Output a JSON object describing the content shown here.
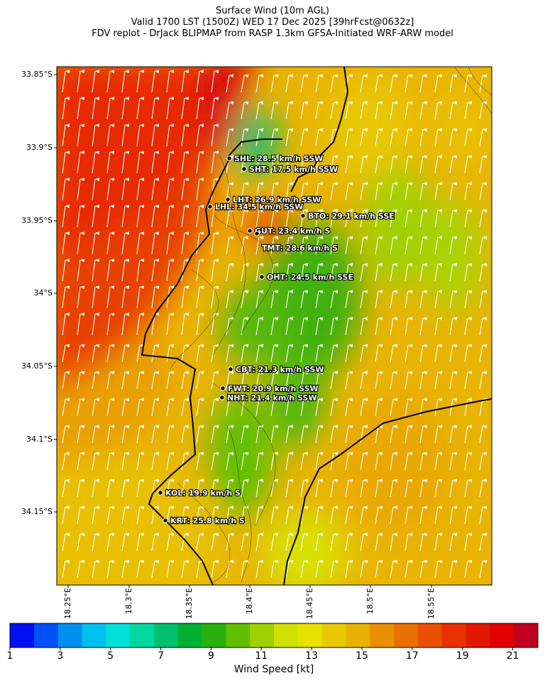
{
  "header": {
    "line1": "Surface Wind (10m AGL)",
    "line2": "Valid 1700 LST (1500Z) WED 17 Dec 2025 [39hrFcst@0632z]",
    "line3": "FDV replot - DrJack BLIPMAP from RASP 1.3km GFSA-Initiated WRF-ARW model"
  },
  "map": {
    "lat_ticks": [
      "33.85°S",
      "33.9°S",
      "33.95°S",
      "34°S",
      "34.05°S",
      "34.1°S",
      "34.15°S"
    ],
    "lon_ticks": [
      "18.25°E",
      "18.3°E",
      "18.35°E",
      "18.4°E",
      "18.45°E",
      "18.5°E",
      "18.55°E"
    ],
    "stations": [
      {
        "code": "SHL",
        "label": "SHL: 28.5 km/h SSW"
      },
      {
        "code": "SHT",
        "label": "SHT: 17.5 km/h SSW"
      },
      {
        "code": "LHT",
        "label": "LHT: 26.9 km/h SSW"
      },
      {
        "code": "LHL",
        "label": "LHL: 34.5 km/h SSW"
      },
      {
        "code": "BTO",
        "label": "BTO: 29.1 km/h SSE"
      },
      {
        "code": "GUT",
        "label": "GUT: 23.4 km/h S"
      },
      {
        "code": "TMT",
        "label": "TMT: 28.6 km/h S"
      },
      {
        "code": "OHT",
        "label": "OHT: 24.5 km/h SSE"
      },
      {
        "code": "CBT",
        "label": "CBT: 21.3 km/h SSW"
      },
      {
        "code": "FWT",
        "label": "FWT: 20.9 km/h SSW"
      },
      {
        "code": "NHT",
        "label": "NHT: 21.4 km/h SSW"
      },
      {
        "code": "KOL",
        "label": "KOL: 19.9 km/h S"
      },
      {
        "code": "KRT",
        "label": "KRT: 25.8 km/h S"
      }
    ],
    "wind_direction": "SSW",
    "arrow_color": "#ffffff"
  },
  "colorbar": {
    "label": "Wind Speed [kt]",
    "min": 1,
    "max": 22,
    "tick_labels": [
      "1",
      "3",
      "5",
      "7",
      "9",
      "11",
      "13",
      "15",
      "17",
      "19",
      "21"
    ],
    "colors": [
      "#0010f0",
      "#0050f8",
      "#0090f0",
      "#00c0ee",
      "#00e0d8",
      "#00d8a0",
      "#00c070",
      "#00b030",
      "#28b010",
      "#60c000",
      "#a0d000",
      "#d0e000",
      "#e8e000",
      "#e8c800",
      "#e8b000",
      "#e89000",
      "#e87000",
      "#e85000",
      "#e83000",
      "#e01800",
      "#e00000",
      "#c00020"
    ]
  }
}
